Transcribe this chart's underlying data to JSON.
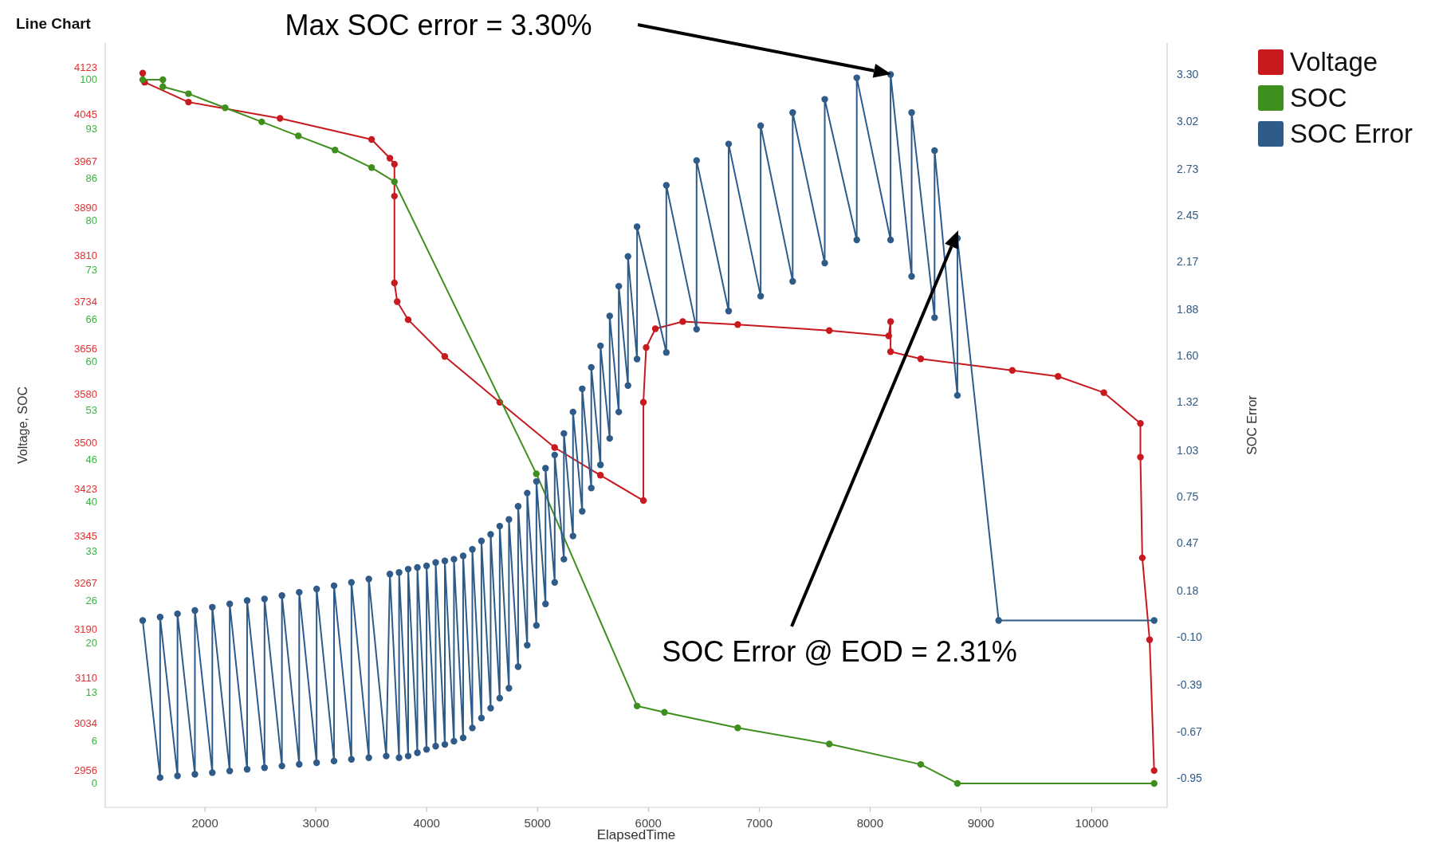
{
  "chart_data": {
    "type": "line",
    "title": "Line Chart",
    "xlabel": "ElapsedTime",
    "ylabel": "Voltage, SOC",
    "y2label": "SOC Error",
    "xlim": [
      1100,
      10680
    ],
    "xticks": [
      2000,
      3000,
      4000,
      5000,
      6000,
      7000,
      8000,
      9000,
      10000
    ],
    "ylim": [
      2895,
      4163
    ],
    "yticks": [
      2956,
      3034,
      3110,
      3190,
      3267,
      3345,
      3423,
      3500,
      3580,
      3656,
      3734,
      3810,
      3890,
      3967,
      4045,
      4123
    ],
    "y3lim": [
      -3.4,
      105.2
    ],
    "y3ticks": [
      0,
      6,
      13,
      20,
      26,
      33,
      40,
      46,
      53,
      60,
      66,
      73,
      80,
      86,
      93,
      100
    ],
    "y2lim": [
      -1.13,
      3.49
    ],
    "y2ticks": [
      {
        "value": -0.95,
        "label": "-0.95"
      },
      {
        "value": -0.67,
        "label": "-0.67"
      },
      {
        "value": -0.39,
        "label": "-0.39"
      },
      {
        "value": -0.1,
        "label": "-0.10"
      },
      {
        "value": 0.18,
        "label": "0.18"
      },
      {
        "value": 0.47,
        "label": "0.47"
      },
      {
        "value": 0.75,
        "label": "0.75"
      },
      {
        "value": 1.03,
        "label": "1.03"
      },
      {
        "value": 1.32,
        "label": "1.32"
      },
      {
        "value": 1.6,
        "label": "1.60"
      },
      {
        "value": 1.88,
        "label": "1.88"
      },
      {
        "value": 2.17,
        "label": "2.17"
      },
      {
        "value": 2.45,
        "label": "2.45"
      },
      {
        "value": 2.73,
        "label": "2.73"
      },
      {
        "value": 3.02,
        "label": "3.02"
      },
      {
        "value": 3.3,
        "label": "3.30"
      }
    ],
    "grid": false,
    "legend": "top right",
    "marker": "circle",
    "line_style": "solid",
    "annotations": [
      "Max SOC error = 3.30%",
      "SOC Error @ EOD = 2.31%"
    ],
    "series": [
      {
        "name": "Voltage",
        "color": "#c8191e",
        "axis": "y",
        "x": [
          1438,
          1455,
          1851,
          2677,
          3503,
          3668,
          3709,
          3709,
          3709,
          3734,
          3833,
          4163,
          4659,
          5154,
          5567,
          5955,
          5955,
          5980,
          6063,
          6310,
          6806,
          7632,
          8168,
          8185,
          8185,
          8457,
          9283,
          9696,
          10109,
          10439,
          10439,
          10456,
          10522,
          10563
        ],
        "values": [
          4113,
          4098,
          4065,
          4038,
          4003,
          3972,
          3962,
          3909,
          3765,
          3734,
          3704,
          3643,
          3567,
          3492,
          3446,
          3404,
          3567,
          3658,
          3689,
          3701,
          3696,
          3686,
          3677,
          3701,
          3651,
          3639,
          3620,
          3610,
          3583,
          3532,
          3476,
          3309,
          3173,
          2956
        ]
      },
      {
        "name": "SOC",
        "color": "#3f8f1f",
        "axis": "y3",
        "x": [
          1438,
          1620,
          1620,
          1851,
          2182,
          2512,
          2842,
          3173,
          3503,
          3709,
          4989,
          5898,
          6145,
          6806,
          7632,
          8457,
          8788,
          10563
        ],
        "values": [
          100,
          100,
          99,
          98,
          96,
          94,
          92,
          90,
          87.5,
          85.5,
          44,
          11,
          10.1,
          7.9,
          5.6,
          2.7,
          0,
          0
        ]
      },
      {
        "name": "SOC Error",
        "color": "#2f5b88",
        "axis": "y2",
        "x": [
          1438,
          1595,
          1595,
          1752,
          1752,
          1909,
          1909,
          2066,
          2066,
          2223,
          2223,
          2380,
          2380,
          2537,
          2537,
          2694,
          2694,
          2850,
          2850,
          3007,
          3007,
          3164,
          3164,
          3321,
          3321,
          3478,
          3478,
          3635,
          3668,
          3751,
          3751,
          3833,
          3833,
          3916,
          3916,
          3999,
          3999,
          4081,
          4081,
          4164,
          4164,
          4246,
          4246,
          4329,
          4329,
          4412,
          4412,
          4494,
          4494,
          4577,
          4577,
          4659,
          4659,
          4742,
          4742,
          4825,
          4825,
          4907,
          4907,
          4990,
          4990,
          5072,
          5072,
          5155,
          5155,
          5238,
          5238,
          5320,
          5320,
          5403,
          5403,
          5485,
          5485,
          5568,
          5568,
          5651,
          5651,
          5733,
          5733,
          5816,
          5816,
          5898,
          5898,
          6162,
          6162,
          6435,
          6435,
          6724,
          6724,
          7013,
          7013,
          7302,
          7302,
          7591,
          7591,
          7880,
          7880,
          8185,
          8185,
          8375,
          8375,
          8582,
          8582,
          8788,
          8788,
          9160,
          10563
        ],
        "values": [
          0,
          -0.95,
          0.02,
          -0.94,
          0.04,
          -0.93,
          0.06,
          -0.92,
          0.08,
          -0.91,
          0.1,
          -0.9,
          0.12,
          -0.89,
          0.13,
          -0.88,
          0.15,
          -0.87,
          0.17,
          -0.86,
          0.19,
          -0.85,
          0.21,
          -0.84,
          0.23,
          -0.83,
          0.25,
          -0.82,
          0.28,
          -0.83,
          0.29,
          -0.82,
          0.31,
          -0.8,
          0.32,
          -0.78,
          0.33,
          -0.76,
          0.35,
          -0.75,
          0.36,
          -0.73,
          0.37,
          -0.71,
          0.39,
          -0.65,
          0.43,
          -0.59,
          0.48,
          -0.53,
          0.52,
          -0.47,
          0.57,
          -0.41,
          0.61,
          -0.28,
          0.69,
          -0.15,
          0.77,
          -0.03,
          0.84,
          0.1,
          0.92,
          0.23,
          1,
          0.37,
          1.13,
          0.51,
          1.26,
          0.66,
          1.4,
          0.8,
          1.53,
          0.94,
          1.66,
          1.1,
          1.84,
          1.26,
          2.02,
          1.42,
          2.2,
          1.58,
          2.38,
          1.62,
          2.63,
          1.76,
          2.78,
          1.87,
          2.88,
          1.96,
          2.99,
          2.05,
          3.07,
          2.16,
          3.15,
          2.3,
          3.28,
          2.3,
          3.3,
          2.08,
          3.07,
          1.83,
          2.84,
          1.36,
          2.31,
          0,
          0
        ]
      }
    ]
  }
}
